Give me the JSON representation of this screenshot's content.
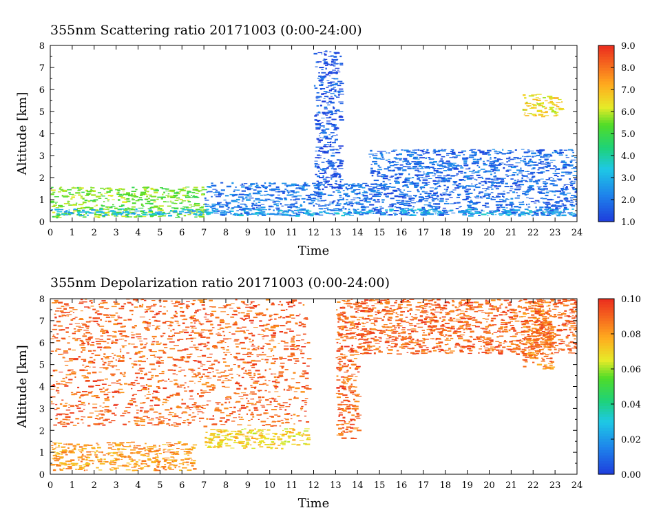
{
  "chart_data": [
    {
      "type": "heatmap",
      "title": "355nm Scattering ratio  20171003 (0:00-24:00)",
      "xlabel": "Time",
      "ylabel": "Altitude [km]",
      "xlim": [
        0,
        24
      ],
      "ylim": [
        0,
        8
      ],
      "x_ticks": [
        "0",
        "1",
        "2",
        "3",
        "4",
        "5",
        "6",
        "7",
        "8",
        "9",
        "10",
        "11",
        "12",
        "13",
        "14",
        "15",
        "16",
        "17",
        "18",
        "19",
        "20",
        "21",
        "22",
        "23",
        "24"
      ],
      "y_ticks": [
        "0",
        "1",
        "2",
        "3",
        "4",
        "5",
        "6",
        "7",
        "8"
      ],
      "colorbar": {
        "min": 1.0,
        "max": 9.0,
        "ticks": [
          "1.0",
          "2.0",
          "3.0",
          "4.0",
          "5.0",
          "6.0",
          "7.0",
          "8.0",
          "9.0"
        ],
        "colormap": "rainbow blue-cyan-green-yellow-orange-red"
      },
      "features": [
        {
          "time": [
            0,
            7
          ],
          "altitude": [
            0.2,
            1.6
          ],
          "value": 5.5
        },
        {
          "time": [
            7,
            14.5
          ],
          "altitude": [
            0.3,
            1.8
          ],
          "value": 2.0
        },
        {
          "time": [
            14.5,
            24
          ],
          "altitude": [
            0.3,
            3.3
          ],
          "value": 1.8
        },
        {
          "time": [
            0,
            24
          ],
          "altitude": [
            0.3,
            0.6
          ],
          "value": 3.0
        },
        {
          "time": [
            12,
            13.2
          ],
          "altitude": [
            1.5,
            7.8
          ],
          "value": 1.5
        },
        {
          "time": [
            21.5,
            23.3
          ],
          "altitude": [
            4.8,
            5.8
          ],
          "value": 6.5
        }
      ]
    },
    {
      "type": "heatmap",
      "title": "355nm Depolarization ratio  20171003 (0:00-24:00)",
      "xlabel": "Time",
      "ylabel": "Altitude [km]",
      "xlim": [
        0,
        24
      ],
      "ylim": [
        0,
        8
      ],
      "x_ticks": [
        "0",
        "1",
        "2",
        "3",
        "4",
        "5",
        "6",
        "7",
        "8",
        "9",
        "10",
        "11",
        "12",
        "13",
        "14",
        "15",
        "16",
        "17",
        "18",
        "19",
        "20",
        "21",
        "22",
        "23",
        "24"
      ],
      "y_ticks": [
        "0",
        "1",
        "2",
        "3",
        "4",
        "5",
        "6",
        "7",
        "8"
      ],
      "colorbar": {
        "min": 0.0,
        "max": 0.1,
        "ticks": [
          "0.00",
          "0.02",
          "0.04",
          "0.06",
          "0.08",
          "0.10"
        ],
        "colormap": "rainbow blue-cyan-green-yellow-orange-red"
      },
      "features": [
        {
          "time": [
            0,
            11.7
          ],
          "altitude": [
            2.2,
            8.0
          ],
          "value": 0.09
        },
        {
          "time": [
            0,
            6.5
          ],
          "altitude": [
            0.2,
            1.5
          ],
          "value": 0.08
        },
        {
          "time": [
            7,
            11.7
          ],
          "altitude": [
            1.2,
            2.1
          ],
          "value": 0.07
        },
        {
          "time": [
            13,
            14
          ],
          "altitude": [
            1.6,
            8.0
          ],
          "value": 0.09
        },
        {
          "time": [
            21.5,
            22.8
          ],
          "altitude": [
            4.8,
            8.0
          ],
          "value": 0.085
        },
        {
          "time": [
            14,
            24
          ],
          "altitude": [
            5.5,
            8.0
          ],
          "value": 0.09
        }
      ]
    }
  ]
}
